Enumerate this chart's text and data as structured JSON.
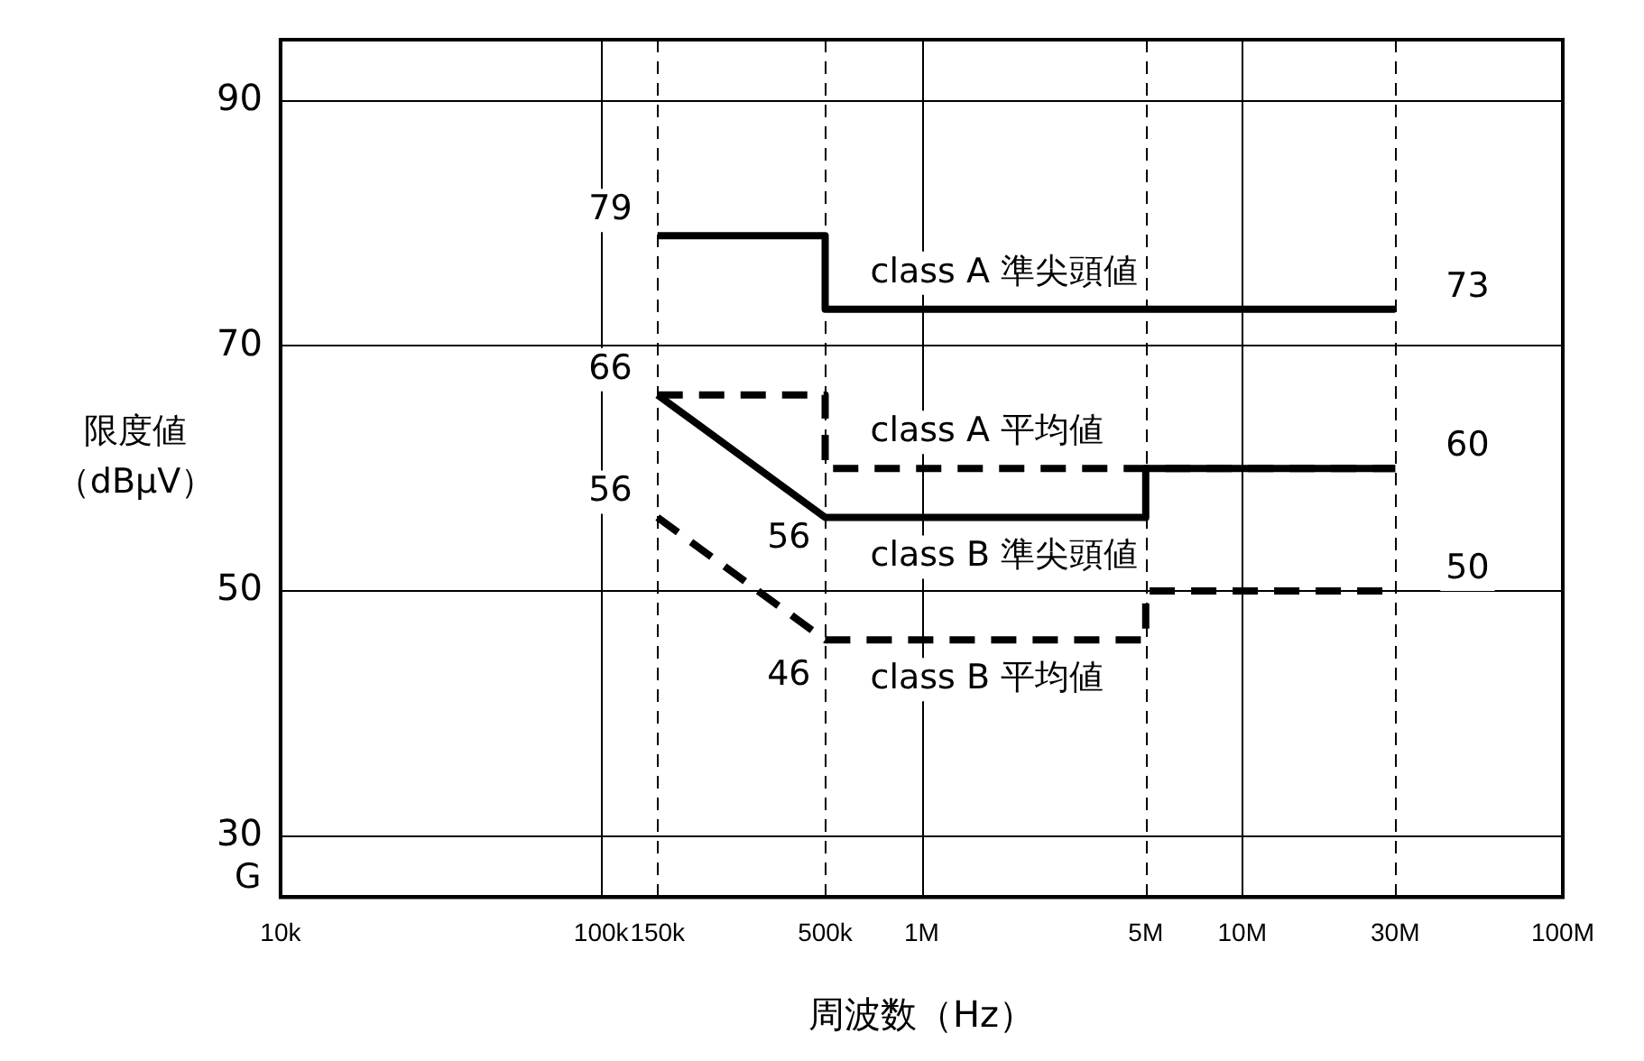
{
  "chart_data": {
    "type": "line",
    "xlabel": "周波数（Hz）",
    "ylabel": "限度値（dBμV）",
    "log": "x",
    "grid": true,
    "legend": false,
    "marker": "none",
    "xlim": [
      10000,
      100000000
    ],
    "xticks": [
      {
        "value": 10000,
        "label": "10k"
      },
      {
        "value": 100000,
        "label": "100k"
      },
      {
        "value": 150000,
        "label": "150k"
      },
      {
        "value": 500000,
        "label": "500k"
      },
      {
        "value": 1000000,
        "label": "1M"
      },
      {
        "value": 5000000,
        "label": "5M"
      },
      {
        "value": 10000000,
        "label": "10M"
      },
      {
        "value": 30000000,
        "label": "30M"
      },
      {
        "value": 100000000,
        "label": "100M"
      }
    ],
    "ylim": [
      25,
      95
    ],
    "yticks": [
      30,
      50,
      70,
      90
    ],
    "series": [
      {
        "name": "class A 準尖頭値",
        "color": "#000000",
        "line_style": "solid",
        "x": [
          150000,
          500000,
          500000,
          30000000
        ],
        "values": [
          79,
          79,
          73,
          73
        ],
        "value_labels": [
          "79",
          null,
          null,
          "73"
        ]
      },
      {
        "name": "class A 平均値",
        "color": "#000000",
        "line_style": "dashed",
        "x": [
          150000,
          500000,
          500000,
          30000000
        ],
        "values": [
          66,
          66,
          60,
          60
        ],
        "value_labels": [
          "66",
          null,
          null,
          "60"
        ]
      },
      {
        "name": "class B 準尖頭値",
        "color": "#000000",
        "line_style": "solid",
        "x": [
          150000,
          500000,
          5000000,
          5000000,
          30000000
        ],
        "values": [
          66,
          56,
          56,
          60,
          60
        ],
        "value_labels": [
          null,
          "56",
          null,
          null,
          null
        ]
      },
      {
        "name": "class B 平均値",
        "color": "#000000",
        "line_style": "dashed",
        "x": [
          150000,
          500000,
          5000000,
          5000000,
          30000000
        ],
        "values": [
          56,
          46,
          46,
          50,
          50
        ],
        "value_labels": [
          "56",
          "46",
          null,
          null,
          "50"
        ]
      }
    ],
    "annotations": [
      "G"
    ]
  }
}
